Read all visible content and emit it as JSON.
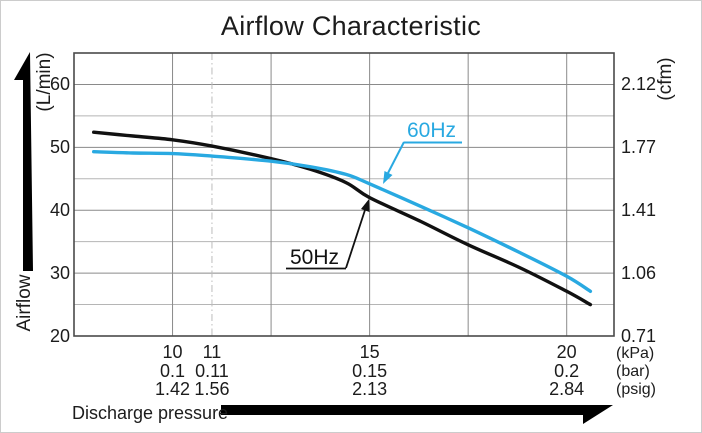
{
  "title": "Airflow Characteristic",
  "y_axis": {
    "name": "Airflow",
    "unit": "(L/min)"
  },
  "y_axis_right": {
    "unit": "(cfm)"
  },
  "x_axis": {
    "name": "Discharge pressure",
    "unit_labels": [
      "(kPa)",
      "(bar)",
      "(psig)"
    ]
  },
  "colors": {
    "curve_50hz": "#111111",
    "curve_60hz": "#29a9e1",
    "grid_major": "#8a8a8a",
    "grid_minor": "#b5b5b5",
    "grid_dashdot": "#bdbdbd",
    "plot_border": "#4a4a4a"
  },
  "chart_data": {
    "type": "line",
    "title": "Airflow Characteristic",
    "xlabel": "Discharge pressure",
    "ylabel": "Airflow",
    "x_unit_rows": [
      "kPa",
      "bar",
      "psig"
    ],
    "y_unit_left": "L/min",
    "y_unit_right": "cfm",
    "xlim_kpa": [
      7.5,
      21.2
    ],
    "ylim_lmin": [
      20,
      65
    ],
    "x_gridlines_kpa": [
      10,
      12.5,
      15,
      17.5,
      20
    ],
    "x_gridline_dashdot_kpa": 11,
    "y_gridlines_major": [
      30,
      40,
      50,
      60
    ],
    "y_gridlines_minor": [
      25,
      35,
      45,
      55
    ],
    "x_tick_columns": [
      {
        "kpa": "10",
        "bar": "0.1",
        "psig": "1.42",
        "kpa_value": 10
      },
      {
        "kpa": "11",
        "bar": "0.11",
        "psig": "1.56",
        "kpa_value": 11
      },
      {
        "kpa": "15",
        "bar": "0.15",
        "psig": "2.13",
        "kpa_value": 15
      },
      {
        "kpa": "20",
        "bar": "0.2",
        "psig": "2.84",
        "kpa_value": 20
      }
    ],
    "y_ticks": [
      {
        "lmin": "20",
        "cfm": "0.71",
        "value": 20
      },
      {
        "lmin": "30",
        "cfm": "1.06",
        "value": 30
      },
      {
        "lmin": "40",
        "cfm": "1.41",
        "value": 40
      },
      {
        "lmin": "50",
        "cfm": "1.77",
        "value": 50
      },
      {
        "lmin": "60",
        "cfm": "2.12",
        "value": 60
      }
    ],
    "x_kpa": [
      8.0,
      9.0,
      10.0,
      11.0,
      12.5,
      13.5,
      14.4,
      15.0,
      16.3,
      17.5,
      18.8,
      20.0,
      20.6
    ],
    "series": [
      {
        "name": "50Hz",
        "color": "#111111",
        "values": [
          52.4,
          51.8,
          51.2,
          50.2,
          48.2,
          46.5,
          44.4,
          42.0,
          38.2,
          34.5,
          30.9,
          27.1,
          25.0
        ]
      },
      {
        "name": "60Hz",
        "color": "#29a9e1",
        "values": [
          49.3,
          49.1,
          49.0,
          48.6,
          47.8,
          46.9,
          45.7,
          44.2,
          40.6,
          37.2,
          33.3,
          29.5,
          27.1
        ]
      }
    ],
    "legend_position": "annotated-on-plot",
    "grid": true
  }
}
